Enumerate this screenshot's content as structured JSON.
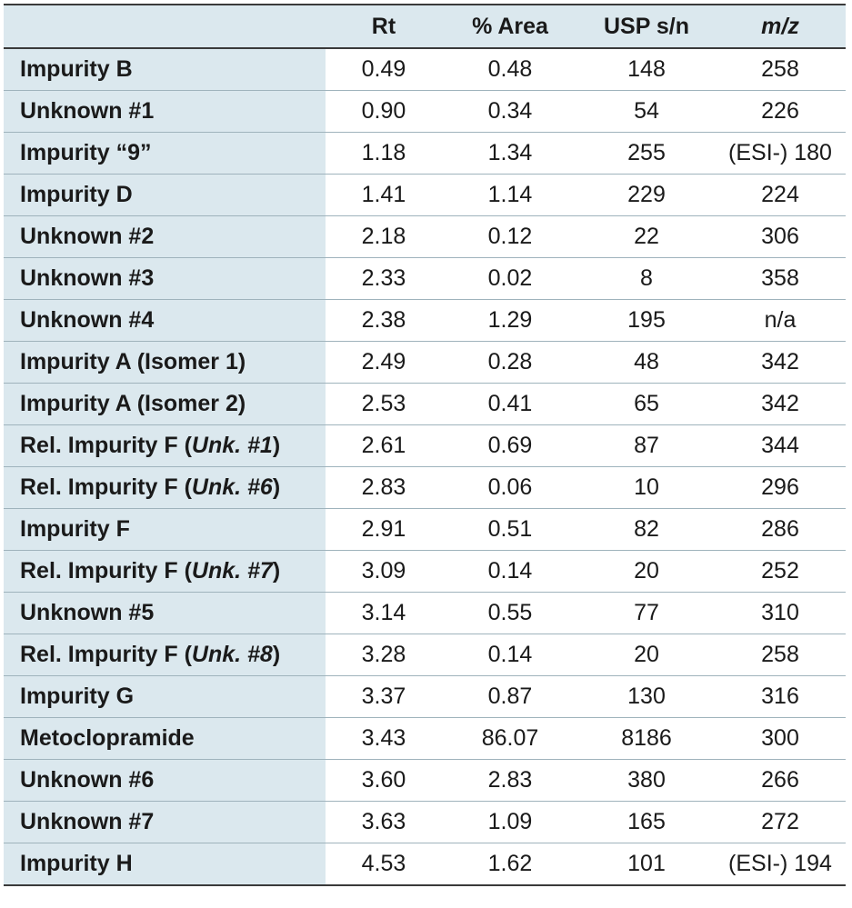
{
  "columns": [
    "",
    "Rt",
    "% Area",
    "USP s/n",
    "m/z"
  ],
  "rows": [
    {
      "name": "Impurity B",
      "rt": "0.49",
      "area": "0.48",
      "sn": "148",
      "mz": "258"
    },
    {
      "name": "Unknown #1",
      "rt": "0.90",
      "area": "0.34",
      "sn": "54",
      "mz": "226"
    },
    {
      "name": "Impurity “9”",
      "rt": "1.18",
      "area": "1.34",
      "sn": "255",
      "mz": "(ESI-) 180"
    },
    {
      "name": "Impurity D",
      "rt": "1.41",
      "area": "1.14",
      "sn": "229",
      "mz": "224"
    },
    {
      "name": "Unknown #2",
      "rt": "2.18",
      "area": "0.12",
      "sn": "22",
      "mz": "306"
    },
    {
      "name": "Unknown #3",
      "rt": "2.33",
      "area": "0.02",
      "sn": "8",
      "mz": "358"
    },
    {
      "name": "Unknown #4",
      "rt": "2.38",
      "area": "1.29",
      "sn": "195",
      "mz": "n/a"
    },
    {
      "name": "Impurity A (Isomer 1)",
      "rt": "2.49",
      "area": "0.28",
      "sn": "48",
      "mz": "342"
    },
    {
      "name": "Impurity A (Isomer 2)",
      "rt": "2.53",
      "area": "0.41",
      "sn": "65",
      "mz": "342"
    },
    {
      "name": "Rel. Impurity F (",
      "name_italic": "Unk. #1",
      "name_suffix": ")",
      "rt": "2.61",
      "area": "0.69",
      "sn": "87",
      "mz": "344"
    },
    {
      "name": "Rel. Impurity F (",
      "name_italic": "Unk. #6",
      "name_suffix": ")",
      "rt": "2.83",
      "area": "0.06",
      "sn": "10",
      "mz": "296"
    },
    {
      "name": "Impurity F",
      "rt": "2.91",
      "area": "0.51",
      "sn": "82",
      "mz": "286"
    },
    {
      "name": "Rel. Impurity F (",
      "name_italic": "Unk. #7",
      "name_suffix": ")",
      "rt": "3.09",
      "area": "0.14",
      "sn": "20",
      "mz": "252"
    },
    {
      "name": "Unknown #5",
      "rt": "3.14",
      "area": "0.55",
      "sn": "77",
      "mz": "310"
    },
    {
      "name": "Rel. Impurity F (",
      "name_italic": "Unk. #8",
      "name_suffix": ")",
      "rt": "3.28",
      "area": "0.14",
      "sn": "20",
      "mz": "258"
    },
    {
      "name": "Impurity G",
      "rt": "3.37",
      "area": "0.87",
      "sn": "130",
      "mz": "316"
    },
    {
      "name": "Metoclopramide",
      "rt": "3.43",
      "area": "86.07",
      "sn": "8186",
      "mz": "300"
    },
    {
      "name": "Unknown #6",
      "rt": "3.60",
      "area": "2.83",
      "sn": "380",
      "mz": "266"
    },
    {
      "name": "Unknown #7",
      "rt": "3.63",
      "area": "1.09",
      "sn": "165",
      "mz": "272"
    },
    {
      "name": "Impurity H",
      "rt": "4.53",
      "area": "1.62",
      "sn": "101",
      "mz": "(ESI-) 194"
    }
  ]
}
